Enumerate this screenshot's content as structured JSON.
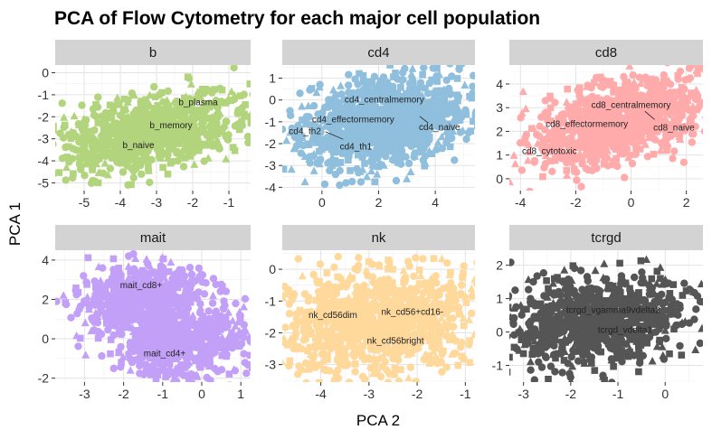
{
  "chart_data": {
    "type": "scatter",
    "title": "PCA of Flow Cytometry for each major cell population",
    "xlabel": "PCA 2",
    "ylabel": "PCA 1",
    "facets": [
      {
        "name": "b",
        "color": "#b2d47c",
        "xlim": [
          -5.8,
          -0.4
        ],
        "ylim": [
          -5.35,
          0.35
        ],
        "xticks": [
          -5,
          -4,
          -3,
          -2,
          -1
        ],
        "yticks": [
          0,
          -1,
          -2,
          -3,
          -4,
          -5
        ],
        "cloud": {
          "cx": -3.2,
          "cy": -2.7,
          "rx": 2.3,
          "ry": 1.5,
          "tilt": 0.35,
          "n": 900
        },
        "labels": [
          {
            "text": "b_plasma",
            "x": -1.85,
            "y": -1.35
          },
          {
            "text": "b_memory",
            "x": -2.6,
            "y": -2.4
          },
          {
            "text": "b_naive",
            "x": -3.5,
            "y": -3.3
          }
        ],
        "leaders": []
      },
      {
        "name": "cd4",
        "color": "#8fbfdc",
        "xlim": [
          -1.4,
          5.4
        ],
        "ylim": [
          -4.15,
          1.6
        ],
        "xticks": [
          0,
          2,
          4
        ],
        "yticks": [
          1,
          0,
          -1,
          -2,
          -3,
          -4
        ],
        "cloud": {
          "cx": 2.2,
          "cy": -1.0,
          "rx": 2.8,
          "ry": 1.75,
          "tilt": 0.22,
          "n": 1100
        },
        "labels": [
          {
            "text": "cd4_centralmemory",
            "x": 2.2,
            "y": 0.0
          },
          {
            "text": "cd4_effectormemory",
            "x": 1.1,
            "y": -0.9
          },
          {
            "text": "cd4_th2",
            "x": -0.6,
            "y": -1.45
          },
          {
            "text": "cd4_naive",
            "x": 4.15,
            "y": -1.25
          },
          {
            "text": "cd4_th1",
            "x": 1.2,
            "y": -2.15
          }
        ],
        "leaders": [
          {
            "x1": 0.12,
            "y1": -1.45,
            "x2": 0.75,
            "y2": -1.8
          },
          {
            "x1": 3.75,
            "y1": -1.05,
            "x2": 3.45,
            "y2": -0.75
          }
        ]
      },
      {
        "name": "cd8",
        "color": "#ffabab",
        "xlim": [
          -4.4,
          2.6
        ],
        "ylim": [
          -0.5,
          4.8
        ],
        "xticks": [
          -4,
          -2,
          0,
          2
        ],
        "yticks": [
          4,
          3,
          2,
          1,
          0
        ],
        "cloud": {
          "cx": -0.4,
          "cy": 2.4,
          "rx": 2.9,
          "ry": 1.5,
          "tilt": 0.3,
          "n": 1000
        },
        "labels": [
          {
            "text": "cd8_centralmemory",
            "x": 0.0,
            "y": 3.1
          },
          {
            "text": "cd8_effectormemory",
            "x": -1.6,
            "y": 2.3
          },
          {
            "text": "cd8_naive",
            "x": 1.55,
            "y": 2.15
          },
          {
            "text": "cd8_cytotoxic",
            "x": -2.95,
            "y": 1.15
          }
        ],
        "leaders": [
          {
            "x1": 0.85,
            "y1": 2.5,
            "x2": 0.5,
            "y2": 2.85
          }
        ]
      },
      {
        "name": "mait",
        "color": "#c3a0f8",
        "xlim": [
          -3.75,
          1.25
        ],
        "ylim": [
          -2.2,
          4.5
        ],
        "xticks": [
          -3,
          -2,
          -1,
          0,
          1
        ],
        "yticks": [
          4,
          2,
          0,
          -2
        ],
        "cloud": {
          "cx": -1.55,
          "cy": 2.1,
          "rx": 1.45,
          "ry": 1.4,
          "tilt": 0.15,
          "n": 600
        },
        "cloud2": {
          "cx": -0.5,
          "cy": -0.1,
          "rx": 1.55,
          "ry": 1.6,
          "tilt": 0.1,
          "n": 600
        },
        "labels": [
          {
            "text": "mait_cd8+",
            "x": -1.55,
            "y": 2.7
          },
          {
            "text": "mait_cd4+",
            "x": -0.95,
            "y": -0.75
          }
        ],
        "leaders": []
      },
      {
        "name": "nk",
        "color": "#ffd89c",
        "xlim": [
          -4.8,
          -0.8
        ],
        "ylim": [
          -3.55,
          0.6
        ],
        "xticks": [
          -4,
          -3,
          -2,
          -1
        ],
        "yticks": [
          0,
          -1,
          -2,
          -3
        ],
        "cloud": {
          "cx": -2.85,
          "cy": -1.6,
          "rx": 1.9,
          "ry": 1.55,
          "tilt": 0.15,
          "n": 1000
        },
        "labels": [
          {
            "text": "nk_cd56dim",
            "x": -3.75,
            "y": -1.45
          },
          {
            "text": "nk_cd56+cd16-",
            "x": -2.1,
            "y": -1.35
          },
          {
            "text": "nk_cd56bright",
            "x": -2.45,
            "y": -2.25
          }
        ],
        "leaders": []
      },
      {
        "name": "tcrgd",
        "color": "#555555",
        "xlim": [
          -3.3,
          0.8
        ],
        "ylim": [
          -1.5,
          2.45
        ],
        "xticks": [
          -3,
          -2,
          -1,
          0
        ],
        "yticks": [
          2,
          1,
          0,
          -1
        ],
        "cloud": {
          "cx": -1.45,
          "cy": 0.35,
          "rx": 1.8,
          "ry": 1.2,
          "tilt": 0.1,
          "n": 900
        },
        "labels": [
          {
            "text": "tcrgd_vgamma9vdelta2",
            "x": -1.1,
            "y": 0.65
          },
          {
            "text": "tcrgd_vdelta1",
            "x": -0.85,
            "y": 0.05
          }
        ],
        "leaders": []
      }
    ]
  }
}
